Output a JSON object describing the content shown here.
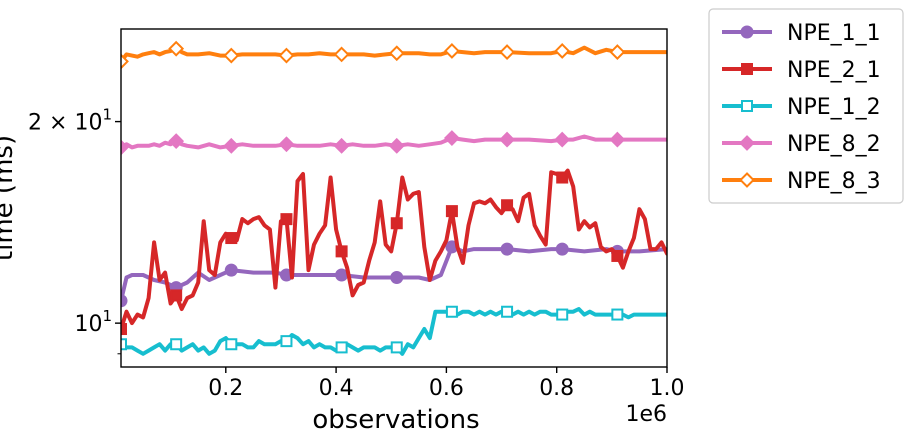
{
  "chart_data": {
    "type": "line",
    "xlabel": "observations",
    "ylabel": "time (ms)",
    "x_offset_label": "1e6",
    "xlim": [
      0.01,
      1.0
    ],
    "ylim": [
      8.6,
      27.5
    ],
    "yscale": "log",
    "x_ticks": [
      {
        "value": 0.2,
        "label": "0.2"
      },
      {
        "value": 0.4,
        "label": "0.4"
      },
      {
        "value": 0.6,
        "label": "0.6"
      },
      {
        "value": 0.8,
        "label": "0.8"
      },
      {
        "value": 1.0,
        "label": "1.0"
      }
    ],
    "y_ticks": [
      {
        "value": 10,
        "label": "10",
        "sup": "1",
        "prefix": ""
      },
      {
        "value": 20,
        "label": "10",
        "sup": "1",
        "prefix": "2 × "
      }
    ],
    "legend_position": "outside-right-top",
    "series": [
      {
        "name": "NPE_1_1",
        "color": "#9467bd",
        "marker": "circle",
        "x": [
          0.01,
          0.02,
          0.03,
          0.05,
          0.07,
          0.09,
          0.11,
          0.13,
          0.15,
          0.17,
          0.19,
          0.21,
          0.25,
          0.29,
          0.31,
          0.33,
          0.37,
          0.41,
          0.45,
          0.49,
          0.51,
          0.53,
          0.55,
          0.57,
          0.59,
          0.61,
          0.63,
          0.65,
          0.67,
          0.71,
          0.75,
          0.79,
          0.81,
          0.85,
          0.89,
          0.91,
          0.95,
          1.0
        ],
        "y": [
          10.8,
          11.7,
          11.8,
          11.8,
          11.6,
          11.5,
          11.3,
          11.5,
          11.9,
          11.6,
          11.8,
          12.0,
          11.9,
          11.9,
          11.8,
          11.8,
          11.8,
          11.8,
          11.7,
          11.7,
          11.7,
          11.7,
          11.7,
          11.6,
          11.8,
          13.0,
          12.8,
          12.9,
          12.9,
          12.9,
          12.8,
          12.9,
          12.9,
          12.8,
          12.9,
          12.8,
          12.8,
          12.9
        ]
      },
      {
        "name": "NPE_2_1",
        "color": "#d62728",
        "marker": "square",
        "x": [
          0.01,
          0.02,
          0.03,
          0.04,
          0.05,
          0.06,
          0.07,
          0.08,
          0.09,
          0.1,
          0.11,
          0.12,
          0.13,
          0.14,
          0.15,
          0.16,
          0.17,
          0.18,
          0.19,
          0.2,
          0.21,
          0.22,
          0.23,
          0.24,
          0.25,
          0.26,
          0.27,
          0.28,
          0.29,
          0.3,
          0.31,
          0.32,
          0.33,
          0.34,
          0.35,
          0.36,
          0.37,
          0.38,
          0.39,
          0.4,
          0.41,
          0.42,
          0.43,
          0.44,
          0.45,
          0.46,
          0.47,
          0.48,
          0.49,
          0.5,
          0.51,
          0.52,
          0.53,
          0.54,
          0.55,
          0.56,
          0.57,
          0.58,
          0.59,
          0.6,
          0.61,
          0.62,
          0.63,
          0.64,
          0.65,
          0.66,
          0.67,
          0.68,
          0.69,
          0.7,
          0.71,
          0.72,
          0.73,
          0.74,
          0.75,
          0.76,
          0.77,
          0.78,
          0.79,
          0.8,
          0.81,
          0.82,
          0.83,
          0.84,
          0.85,
          0.86,
          0.87,
          0.88,
          0.89,
          0.9,
          0.91,
          0.92,
          0.93,
          0.94,
          0.95,
          0.96,
          0.97,
          0.98,
          0.99,
          1.0
        ],
        "y": [
          9.8,
          10.4,
          10.0,
          10.3,
          10.2,
          10.9,
          13.2,
          11.6,
          11.9,
          10.7,
          11.0,
          10.5,
          10.9,
          11.0,
          11.5,
          14.2,
          12.0,
          11.8,
          13.2,
          13.6,
          13.4,
          13.3,
          14.3,
          14.1,
          14.3,
          14.4,
          14.0,
          13.8,
          11.3,
          14.2,
          14.3,
          11.7,
          16.3,
          16.7,
          12.0,
          13.1,
          13.6,
          14.0,
          16.5,
          13.8,
          12.8,
          12.1,
          11.0,
          11.4,
          11.5,
          12.4,
          13.2,
          15.2,
          13.1,
          12.8,
          14.1,
          16.5,
          15.3,
          15.6,
          15.7,
          13.0,
          11.6,
          12.4,
          12.8,
          13.3,
          14.7,
          13.0,
          12.3,
          14.0,
          15.1,
          15.2,
          15.1,
          15.3,
          14.9,
          14.6,
          15.0,
          14.8,
          14.2,
          15.4,
          15.6,
          14.0,
          13.5,
          13.1,
          16.8,
          16.7,
          16.5,
          16.9,
          16.0,
          13.8,
          14.2,
          13.9,
          14.1,
          13.0,
          12.8,
          12.9,
          12.6,
          12.1,
          12.8,
          13.4,
          14.8,
          14.3,
          12.9,
          12.9,
          13.2,
          12.7
        ]
      },
      {
        "name": "NPE_1_2",
        "color": "#17becf",
        "marker": "square-open",
        "x": [
          0.01,
          0.02,
          0.03,
          0.04,
          0.05,
          0.06,
          0.07,
          0.08,
          0.09,
          0.1,
          0.11,
          0.12,
          0.13,
          0.14,
          0.15,
          0.16,
          0.17,
          0.18,
          0.19,
          0.2,
          0.21,
          0.22,
          0.23,
          0.24,
          0.25,
          0.26,
          0.27,
          0.28,
          0.29,
          0.3,
          0.31,
          0.32,
          0.33,
          0.34,
          0.35,
          0.36,
          0.37,
          0.38,
          0.39,
          0.4,
          0.41,
          0.42,
          0.43,
          0.44,
          0.45,
          0.46,
          0.47,
          0.48,
          0.49,
          0.5,
          0.51,
          0.52,
          0.53,
          0.54,
          0.55,
          0.56,
          0.57,
          0.58,
          0.59,
          0.6,
          0.61,
          0.62,
          0.63,
          0.64,
          0.65,
          0.66,
          0.67,
          0.68,
          0.69,
          0.7,
          0.71,
          0.72,
          0.73,
          0.74,
          0.75,
          0.76,
          0.77,
          0.78,
          0.79,
          0.8,
          0.81,
          0.82,
          0.83,
          0.84,
          0.85,
          0.86,
          0.87,
          0.88,
          0.89,
          0.9,
          0.91,
          0.92,
          0.93,
          0.94,
          0.95,
          0.96,
          0.97,
          0.98,
          0.99,
          1.0
        ],
        "y": [
          9.3,
          9.2,
          9.2,
          9.1,
          9.0,
          9.1,
          9.2,
          9.3,
          9.1,
          9.3,
          9.3,
          9.1,
          9.2,
          9.3,
          9.1,
          9.2,
          9.0,
          9.1,
          9.4,
          9.5,
          9.3,
          9.3,
          9.3,
          9.2,
          9.2,
          9.4,
          9.3,
          9.3,
          9.3,
          9.4,
          9.4,
          9.6,
          9.5,
          9.3,
          9.4,
          9.2,
          9.3,
          9.2,
          9.2,
          9.1,
          9.2,
          9.3,
          9.2,
          9.1,
          9.2,
          9.2,
          9.2,
          9.1,
          9.2,
          9.2,
          9.2,
          9.0,
          9.3,
          9.2,
          9.5,
          9.8,
          9.5,
          10.4,
          10.4,
          10.4,
          10.4,
          10.3,
          10.4,
          10.4,
          10.3,
          10.4,
          10.3,
          10.4,
          10.3,
          10.4,
          10.4,
          10.3,
          10.4,
          10.3,
          10.4,
          10.3,
          10.4,
          10.4,
          10.3,
          10.3,
          10.3,
          10.4,
          10.4,
          10.5,
          10.3,
          10.4,
          10.3,
          10.3,
          10.3,
          10.3,
          10.3,
          10.3,
          10.2,
          10.3,
          10.3,
          10.3,
          10.3,
          10.3,
          10.3,
          10.3
        ]
      },
      {
        "name": "NPE_8_2",
        "color": "#e377c2",
        "marker": "diamond",
        "x": [
          0.01,
          0.02,
          0.03,
          0.04,
          0.05,
          0.06,
          0.07,
          0.08,
          0.09,
          0.1,
          0.11,
          0.12,
          0.13,
          0.15,
          0.17,
          0.19,
          0.21,
          0.23,
          0.25,
          0.27,
          0.29,
          0.31,
          0.33,
          0.35,
          0.37,
          0.39,
          0.41,
          0.43,
          0.45,
          0.47,
          0.49,
          0.51,
          0.53,
          0.55,
          0.57,
          0.59,
          0.61,
          0.63,
          0.65,
          0.67,
          0.71,
          0.75,
          0.79,
          0.81,
          0.83,
          0.85,
          0.87,
          0.89,
          0.91,
          0.95,
          1.0
        ],
        "y": [
          18.3,
          18.5,
          18.3,
          18.4,
          18.4,
          18.4,
          18.5,
          18.4,
          18.6,
          18.5,
          18.7,
          18.5,
          18.4,
          18.3,
          18.5,
          18.3,
          18.4,
          18.5,
          18.4,
          18.4,
          18.4,
          18.5,
          18.4,
          18.4,
          18.4,
          18.5,
          18.4,
          18.5,
          18.4,
          18.4,
          18.5,
          18.4,
          18.5,
          18.4,
          18.5,
          18.6,
          18.9,
          18.8,
          18.7,
          18.8,
          18.8,
          18.8,
          18.7,
          18.8,
          18.8,
          19.0,
          18.8,
          18.8,
          18.8,
          18.8,
          18.8
        ]
      },
      {
        "name": "NPE_8_3",
        "color": "#ff7f0e",
        "marker": "diamond-open",
        "x": [
          0.01,
          0.02,
          0.03,
          0.04,
          0.05,
          0.06,
          0.07,
          0.08,
          0.09,
          0.1,
          0.11,
          0.12,
          0.13,
          0.15,
          0.17,
          0.19,
          0.21,
          0.23,
          0.25,
          0.27,
          0.29,
          0.31,
          0.33,
          0.35,
          0.37,
          0.39,
          0.41,
          0.43,
          0.45,
          0.47,
          0.49,
          0.51,
          0.53,
          0.55,
          0.57,
          0.59,
          0.61,
          0.63,
          0.65,
          0.67,
          0.71,
          0.75,
          0.79,
          0.81,
          0.83,
          0.85,
          0.87,
          0.89,
          0.91,
          0.95,
          1.0
        ],
        "y": [
          24.6,
          25.2,
          25.1,
          25.0,
          25.2,
          25.3,
          25.4,
          25.2,
          25.4,
          25.5,
          25.7,
          25.4,
          25.2,
          25.2,
          25.3,
          25.1,
          25.1,
          25.2,
          25.2,
          25.2,
          25.2,
          25.1,
          25.2,
          25.2,
          25.3,
          25.2,
          25.2,
          25.2,
          25.2,
          25.1,
          25.2,
          25.3,
          25.3,
          25.3,
          25.2,
          25.2,
          25.5,
          25.4,
          25.3,
          25.4,
          25.4,
          25.3,
          25.3,
          25.5,
          25.3,
          25.8,
          25.3,
          25.6,
          25.4,
          25.4,
          25.4
        ]
      }
    ]
  }
}
